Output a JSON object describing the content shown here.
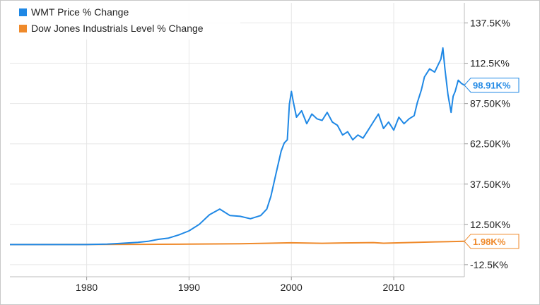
{
  "chart_data": {
    "type": "line",
    "title": "",
    "xlabel": "",
    "ylabel": "",
    "xlim": [
      1972.5,
      2016.9
    ],
    "ylim": [
      -20000,
      150000
    ],
    "x_ticks": [
      1980,
      1990,
      2000,
      2010
    ],
    "x_tick_labels": [
      "1980",
      "1990",
      "2000",
      "2010"
    ],
    "y_ticks": [
      -12500,
      12500,
      37500,
      62500,
      87500,
      112500,
      137500
    ],
    "y_tick_labels": [
      "-12.5K%",
      "12.50K%",
      "37.50K%",
      "62.50K%",
      "87.50K%",
      "112.5K%",
      "137.5K%"
    ],
    "grid": true,
    "legend_position": "top-left",
    "series": [
      {
        "name": "WMT Price % Change",
        "color": "#1f88e5",
        "end_label": "98.91K%",
        "x": [
          1972.5,
          1976,
          1980,
          1982,
          1983,
          1984,
          1985,
          1986,
          1987,
          1988,
          1989,
          1990,
          1991,
          1992,
          1993,
          1994,
          1995,
          1996,
          1997,
          1997.6,
          1998,
          1998.5,
          1999,
          1999.3,
          1999.6,
          1999.8,
          2000,
          2000.2,
          2000.5,
          2001,
          2001.5,
          2002,
          2002.5,
          2003,
          2003.5,
          2004,
          2004.5,
          2005,
          2005.5,
          2006,
          2006.5,
          2007,
          2007.5,
          2008,
          2008.5,
          2009,
          2009.5,
          2010,
          2010.5,
          2011,
          2011.5,
          2012,
          2012.3,
          2012.7,
          2013,
          2013.5,
          2014,
          2014.3,
          2014.6,
          2014.8,
          2015,
          2015.3,
          2015.6,
          2015.8,
          2016,
          2016.3,
          2016.6,
          2016.9
        ],
        "y": [
          0,
          0,
          0,
          250,
          600,
          1000,
          1400,
          2000,
          3200,
          4000,
          6000,
          8500,
          12500,
          18500,
          22000,
          18000,
          17500,
          16000,
          18000,
          22000,
          30000,
          44000,
          58000,
          63000,
          65000,
          87000,
          95000,
          88000,
          79000,
          83000,
          75000,
          81000,
          78000,
          77000,
          82000,
          76000,
          74000,
          68000,
          70000,
          65000,
          68000,
          66000,
          71000,
          76000,
          81000,
          72000,
          76000,
          71000,
          79000,
          75000,
          78000,
          80000,
          88000,
          96000,
          104000,
          109000,
          107000,
          111000,
          115000,
          122000,
          109000,
          93000,
          82000,
          92000,
          95000,
          102000,
          100000,
          98910
        ]
      },
      {
        "name": "Dow Jones Industrials Level % Change",
        "color": "#ef8a2b",
        "end_label": "1.98K%",
        "x": [
          1972.5,
          1980,
          1985,
          1990,
          1995,
          2000,
          2003,
          2005,
          2008,
          2009,
          2012,
          2014,
          2016.9
        ],
        "y": [
          0,
          20,
          130,
          260,
          450,
          1070,
          750,
          1000,
          1200,
          800,
          1300,
          1660,
          1980
        ]
      }
    ]
  }
}
